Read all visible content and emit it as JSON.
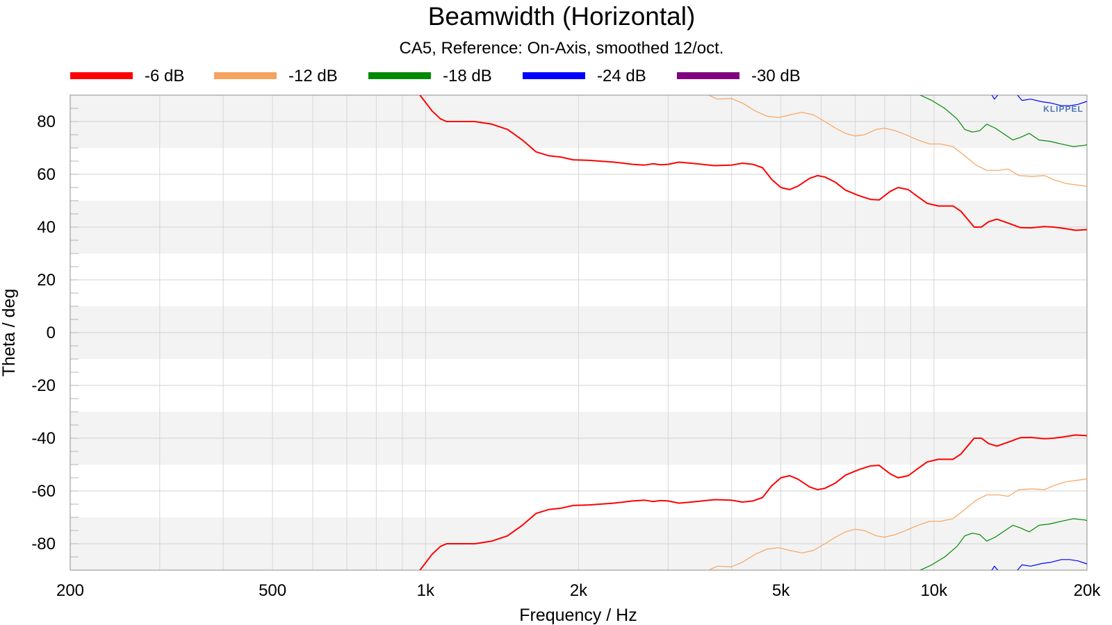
{
  "chart_data": {
    "type": "line",
    "title": "Beamwidth (Horizontal)",
    "subtitle": "CA5, Reference: On-Axis, smoothed 12/oct.",
    "xlabel": "Frequency / Hz",
    "ylabel": "Theta / deg",
    "xscale": "log",
    "xlim": [
      200,
      20000
    ],
    "ylim": [
      -90,
      90
    ],
    "grid": true,
    "legend_position": "top",
    "logo_text": "KLIPPEL",
    "x_ticks": [
      {
        "value": 200,
        "label": "200"
      },
      {
        "value": 500,
        "label": "500"
      },
      {
        "value": 1000,
        "label": "1k"
      },
      {
        "value": 2000,
        "label": "2k"
      },
      {
        "value": 5000,
        "label": "5k"
      },
      {
        "value": 10000,
        "label": "10k"
      },
      {
        "value": 20000,
        "label": "20k"
      }
    ],
    "y_ticks": [
      {
        "value": 80,
        "label": "80"
      },
      {
        "value": 60,
        "label": "60"
      },
      {
        "value": 40,
        "label": "40"
      },
      {
        "value": 20,
        "label": "20"
      },
      {
        "value": 0,
        "label": "0"
      },
      {
        "value": -20,
        "label": "-20"
      },
      {
        "value": -40,
        "label": "-40"
      },
      {
        "value": -60,
        "label": "-60"
      },
      {
        "value": -80,
        "label": "-80"
      }
    ],
    "series": [
      {
        "name": "-6 dB",
        "color": "#ff0000",
        "width": 2,
        "upper": [
          [
            975,
            90
          ],
          [
            1030,
            84
          ],
          [
            1070,
            81
          ],
          [
            1100,
            80
          ],
          [
            1150,
            80
          ],
          [
            1250,
            80
          ],
          [
            1350,
            79
          ],
          [
            1450,
            77
          ],
          [
            1550,
            73
          ],
          [
            1650,
            68.5
          ],
          [
            1750,
            67
          ],
          [
            1850,
            66.5
          ],
          [
            1950,
            65.5
          ],
          [
            2100,
            65.3
          ],
          [
            2200,
            65
          ],
          [
            2350,
            64.6
          ],
          [
            2450,
            64.2
          ],
          [
            2550,
            63.8
          ],
          [
            2700,
            63.5
          ],
          [
            2800,
            64
          ],
          [
            2900,
            63.6
          ],
          [
            3000,
            63.8
          ],
          [
            3150,
            64.6
          ],
          [
            3300,
            64.3
          ],
          [
            3500,
            63.8
          ],
          [
            3700,
            63.3
          ],
          [
            4000,
            63.5
          ],
          [
            4200,
            64.2
          ],
          [
            4400,
            63.8
          ],
          [
            4600,
            62.5
          ],
          [
            4800,
            58
          ],
          [
            5000,
            55
          ],
          [
            5200,
            54.2
          ],
          [
            5400,
            55.5
          ],
          [
            5700,
            58.5
          ],
          [
            5900,
            59.5
          ],
          [
            6100,
            59
          ],
          [
            6400,
            57
          ],
          [
            6700,
            54
          ],
          [
            7100,
            52
          ],
          [
            7500,
            50.5
          ],
          [
            7800,
            50.3
          ],
          [
            8200,
            53.5
          ],
          [
            8500,
            55
          ],
          [
            8900,
            54.2
          ],
          [
            9300,
            51.5
          ],
          [
            9700,
            49
          ],
          [
            10200,
            48
          ],
          [
            10900,
            48
          ],
          [
            11300,
            46
          ],
          [
            12000,
            40
          ],
          [
            12400,
            40
          ],
          [
            12800,
            42
          ],
          [
            13300,
            43
          ],
          [
            14000,
            41.5
          ],
          [
            14800,
            39.8
          ],
          [
            15500,
            39.7
          ],
          [
            16500,
            40.2
          ],
          [
            17200,
            40
          ],
          [
            18000,
            39.5
          ],
          [
            19000,
            38.8
          ],
          [
            20200,
            39.1
          ],
          [
            21500,
            40.2
          ],
          [
            22500,
            41.3
          ]
        ],
        "lower": [
          [
            975,
            -90
          ],
          [
            1030,
            -84
          ],
          [
            1070,
            -81
          ],
          [
            1100,
            -80
          ],
          [
            1150,
            -80
          ],
          [
            1250,
            -80
          ],
          [
            1350,
            -79
          ],
          [
            1450,
            -77
          ],
          [
            1550,
            -73
          ],
          [
            1650,
            -68.5
          ],
          [
            1750,
            -67
          ],
          [
            1850,
            -66.5
          ],
          [
            1950,
            -65.5
          ],
          [
            2100,
            -65.3
          ],
          [
            2200,
            -65
          ],
          [
            2350,
            -64.6
          ],
          [
            2450,
            -64.2
          ],
          [
            2550,
            -63.8
          ],
          [
            2700,
            -63.5
          ],
          [
            2800,
            -64
          ],
          [
            2900,
            -63.6
          ],
          [
            3000,
            -63.8
          ],
          [
            3150,
            -64.6
          ],
          [
            3300,
            -64.3
          ],
          [
            3500,
            -63.8
          ],
          [
            3700,
            -63.3
          ],
          [
            4000,
            -63.5
          ],
          [
            4200,
            -64.2
          ],
          [
            4400,
            -63.8
          ],
          [
            4600,
            -62.5
          ],
          [
            4800,
            -58
          ],
          [
            5000,
            -55
          ],
          [
            5200,
            -54.2
          ],
          [
            5400,
            -55.5
          ],
          [
            5700,
            -58.5
          ],
          [
            5900,
            -59.5
          ],
          [
            6100,
            -59
          ],
          [
            6400,
            -57
          ],
          [
            6700,
            -54
          ],
          [
            7100,
            -52
          ],
          [
            7500,
            -50.5
          ],
          [
            7800,
            -50.3
          ],
          [
            8200,
            -53.5
          ],
          [
            8500,
            -55
          ],
          [
            8900,
            -54.2
          ],
          [
            9300,
            -51.5
          ],
          [
            9700,
            -49
          ],
          [
            10200,
            -48
          ],
          [
            10900,
            -48
          ],
          [
            11300,
            -46
          ],
          [
            12000,
            -40
          ],
          [
            12400,
            -40
          ],
          [
            12800,
            -42
          ],
          [
            13300,
            -43
          ],
          [
            14000,
            -41.5
          ],
          [
            14800,
            -39.8
          ],
          [
            15500,
            -39.7
          ],
          [
            16500,
            -40.2
          ],
          [
            17200,
            -40
          ],
          [
            18000,
            -39.5
          ],
          [
            19000,
            -38.8
          ],
          [
            20200,
            -39.1
          ],
          [
            21500,
            -40.2
          ],
          [
            22500,
            -41.3
          ]
        ]
      },
      {
        "name": "-12 dB",
        "color": "#f6a35f",
        "width": 1.2,
        "upper": [
          [
            3600,
            90
          ],
          [
            3750,
            88.5
          ],
          [
            4000,
            88.7
          ],
          [
            4200,
            87
          ],
          [
            4450,
            84
          ],
          [
            4700,
            82
          ],
          [
            4950,
            81.5
          ],
          [
            5200,
            82.5
          ],
          [
            5500,
            83.5
          ],
          [
            5800,
            82.5
          ],
          [
            6100,
            80
          ],
          [
            6400,
            77.5
          ],
          [
            6700,
            75.5
          ],
          [
            7000,
            74.5
          ],
          [
            7300,
            75
          ],
          [
            7700,
            77
          ],
          [
            8000,
            77.5
          ],
          [
            8400,
            76.5
          ],
          [
            8800,
            75
          ],
          [
            9300,
            73
          ],
          [
            9800,
            71.5
          ],
          [
            10300,
            71.5
          ],
          [
            10900,
            70.5
          ],
          [
            11500,
            67
          ],
          [
            12100,
            63.5
          ],
          [
            12700,
            61.5
          ],
          [
            13400,
            61.5
          ],
          [
            14000,
            62
          ],
          [
            14700,
            59.5
          ],
          [
            15600,
            59.2
          ],
          [
            16500,
            59.5
          ],
          [
            17300,
            57.8
          ],
          [
            18200,
            56.5
          ],
          [
            19400,
            55.8
          ],
          [
            20300,
            55.2
          ],
          [
            21200,
            54
          ],
          [
            22000,
            55
          ],
          [
            22800,
            56
          ]
        ],
        "lower": [
          [
            3600,
            -90
          ],
          [
            3750,
            -88.5
          ],
          [
            4000,
            -88.7
          ],
          [
            4200,
            -87
          ],
          [
            4450,
            -84
          ],
          [
            4700,
            -82
          ],
          [
            4950,
            -81.5
          ],
          [
            5200,
            -82.5
          ],
          [
            5500,
            -83.5
          ],
          [
            5800,
            -82.5
          ],
          [
            6100,
            -80
          ],
          [
            6400,
            -77.5
          ],
          [
            6700,
            -75.5
          ],
          [
            7000,
            -74.5
          ],
          [
            7300,
            -75
          ],
          [
            7700,
            -77
          ],
          [
            8000,
            -77.5
          ],
          [
            8400,
            -76.5
          ],
          [
            8800,
            -75
          ],
          [
            9300,
            -73
          ],
          [
            9800,
            -71.5
          ],
          [
            10300,
            -71.5
          ],
          [
            10900,
            -70.5
          ],
          [
            11500,
            -67
          ],
          [
            12100,
            -63.5
          ],
          [
            12700,
            -61.5
          ],
          [
            13400,
            -61.5
          ],
          [
            14000,
            -62
          ],
          [
            14700,
            -59.5
          ],
          [
            15600,
            -59.2
          ],
          [
            16500,
            -59.5
          ],
          [
            17300,
            -57.8
          ],
          [
            18200,
            -56.5
          ],
          [
            19400,
            -55.8
          ],
          [
            20300,
            -55.2
          ],
          [
            21200,
            -54
          ],
          [
            22000,
            -55
          ],
          [
            22800,
            -56
          ]
        ]
      },
      {
        "name": "-18 dB",
        "color": "#008a00",
        "width": 1.2,
        "upper": [
          [
            9400,
            90
          ],
          [
            9900,
            88
          ],
          [
            10500,
            85
          ],
          [
            11100,
            81
          ],
          [
            11500,
            77
          ],
          [
            11900,
            76
          ],
          [
            12300,
            76.5
          ],
          [
            12700,
            79
          ],
          [
            13200,
            77.5
          ],
          [
            13800,
            75
          ],
          [
            14300,
            73
          ],
          [
            14800,
            74
          ],
          [
            15400,
            75.5
          ],
          [
            16100,
            73
          ],
          [
            16900,
            72.5
          ],
          [
            17800,
            71.5
          ],
          [
            18800,
            70.5
          ],
          [
            19800,
            71
          ],
          [
            20800,
            72
          ],
          [
            22000,
            74
          ],
          [
            22800,
            76
          ]
        ],
        "lower": [
          [
            9400,
            -90
          ],
          [
            9900,
            -88
          ],
          [
            10500,
            -85
          ],
          [
            11100,
            -81
          ],
          [
            11500,
            -77
          ],
          [
            11900,
            -76
          ],
          [
            12300,
            -76.5
          ],
          [
            12700,
            -79
          ],
          [
            13200,
            -77.5
          ],
          [
            13800,
            -75
          ],
          [
            14300,
            -73
          ],
          [
            14800,
            -74
          ],
          [
            15400,
            -75.5
          ],
          [
            16100,
            -73
          ],
          [
            16900,
            -72.5
          ],
          [
            17800,
            -71.5
          ],
          [
            18800,
            -70.5
          ],
          [
            19800,
            -71
          ],
          [
            20800,
            -72
          ],
          [
            22000,
            -74
          ],
          [
            22800,
            -76
          ]
        ]
      },
      {
        "name": "-24 dB",
        "color": "#0000ff",
        "width": 1.2,
        "upper": [
          [
            13000,
            90
          ],
          [
            13150,
            88.5
          ],
          [
            13350,
            90
          ]
        ],
        "upper2": [
          [
            14600,
            90
          ],
          [
            14900,
            88
          ],
          [
            15500,
            88.5
          ],
          [
            16300,
            87.5
          ],
          [
            17000,
            87
          ],
          [
            17800,
            86
          ],
          [
            18500,
            86
          ],
          [
            19200,
            86.5
          ],
          [
            19900,
            87.5
          ],
          [
            20600,
            88.5
          ],
          [
            21200,
            90
          ]
        ],
        "lower": [
          [
            13000,
            -90
          ],
          [
            13150,
            -88.5
          ],
          [
            13350,
            -90
          ]
        ],
        "lower2": [
          [
            14600,
            -90
          ],
          [
            14900,
            -88
          ],
          [
            15500,
            -88.5
          ],
          [
            16300,
            -87.5
          ],
          [
            17000,
            -87
          ],
          [
            17800,
            -86
          ],
          [
            18500,
            -86
          ],
          [
            19200,
            -86.5
          ],
          [
            19900,
            -87.5
          ],
          [
            20600,
            -88.5
          ],
          [
            21200,
            -90
          ]
        ]
      },
      {
        "name": "-30 dB",
        "color": "#800080",
        "width": 1.2,
        "upper": [],
        "lower": []
      }
    ]
  }
}
